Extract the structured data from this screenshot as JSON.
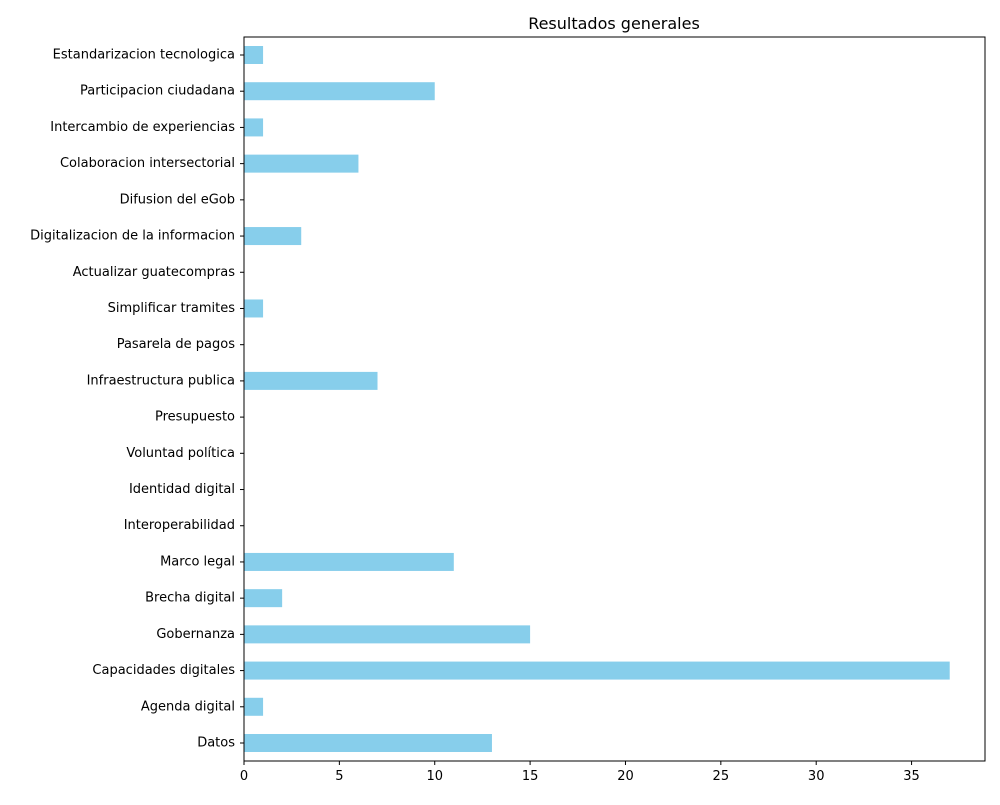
{
  "chart_data": {
    "type": "bar",
    "orientation": "horizontal",
    "title": "Resultados generales",
    "xlabel": "",
    "ylabel": "",
    "categories": [
      "Datos",
      "Agenda digital",
      "Capacidades digitales",
      "Gobernanza",
      "Brecha digital",
      "Marco legal",
      "Interoperabilidad",
      "Identidad digital",
      "Voluntad política",
      "Presupuesto",
      "Infraestructura publica",
      "Pasarela de pagos",
      "Simplificar tramites",
      "Actualizar guatecompras",
      "Digitalizacion de la informacion",
      "Difusion del eGob",
      "Colaboracion intersectorial",
      "Intercambio de experiencias",
      "Participacion ciudadana",
      "Estandarizacion tecnologica"
    ],
    "values": [
      13,
      1,
      37,
      15,
      2,
      11,
      0,
      0,
      0,
      0,
      7,
      0,
      1,
      0,
      3,
      0,
      6,
      1,
      10,
      1
    ],
    "xlim": [
      0,
      38.85
    ],
    "xticks": [
      0,
      5,
      10,
      15,
      20,
      25,
      30,
      35
    ],
    "bar_color": "#87CEEB",
    "grid": false,
    "legend": "none"
  }
}
